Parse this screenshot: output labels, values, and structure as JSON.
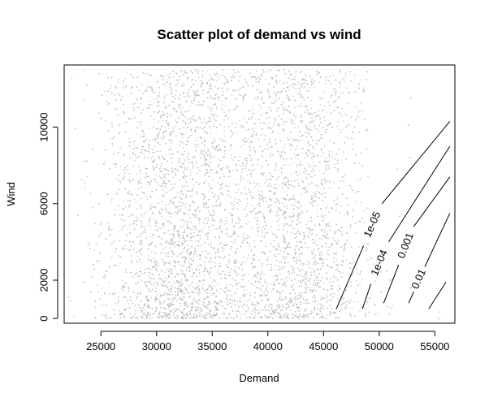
{
  "chart_data": {
    "type": "scatter",
    "title": "Scatter plot of demand vs wind",
    "xlabel": "Demand",
    "ylabel": "Wind",
    "xlim": [
      21700,
      56800
    ],
    "ylim": [
      -250,
      13250
    ],
    "x_ticks": [
      25000,
      30000,
      35000,
      40000,
      45000,
      50000,
      55000
    ],
    "y_ticks": [
      0,
      2000,
      6000,
      10000
    ],
    "point_color": "#bebebe",
    "point_count_estimate": 15000,
    "point_cloud": {
      "x_range": [
        21800,
        56500
      ],
      "y_range": [
        0,
        13000
      ],
      "dense_x_range": [
        27000,
        48000
      ],
      "note_density": "denser at low wind"
    },
    "contours": [
      {
        "level_label": "1e-05",
        "segments": [
          [
            [
              46150,
              500
            ],
            [
              48600,
              3800
            ]
          ],
          [
            [
              50250,
              6000
            ],
            [
              56350,
              10300
            ]
          ]
        ]
      },
      {
        "level_label": "1e-04",
        "segments": [
          [
            [
              48500,
              500
            ],
            [
              49250,
              1800
            ]
          ],
          [
            [
              50850,
              4000
            ],
            [
              56350,
              9000
            ]
          ]
        ]
      },
      {
        "level_label": "0.001",
        "segments": [
          [
            [
              50400,
              800
            ],
            [
              51750,
              2800
            ]
          ],
          [
            [
              53100,
              4800
            ],
            [
              56350,
              7400
            ]
          ]
        ]
      },
      {
        "level_label": "0.01",
        "segments": [
          [
            [
              52650,
              800
            ],
            [
              53100,
              1400
            ]
          ],
          [
            [
              54100,
              2700
            ],
            [
              56350,
              5500
            ]
          ]
        ]
      },
      {
        "level_label": "",
        "segments": [
          [
            [
              54450,
              500
            ],
            [
              56000,
              1900
            ]
          ]
        ]
      }
    ],
    "grid": false,
    "legend": "none"
  }
}
